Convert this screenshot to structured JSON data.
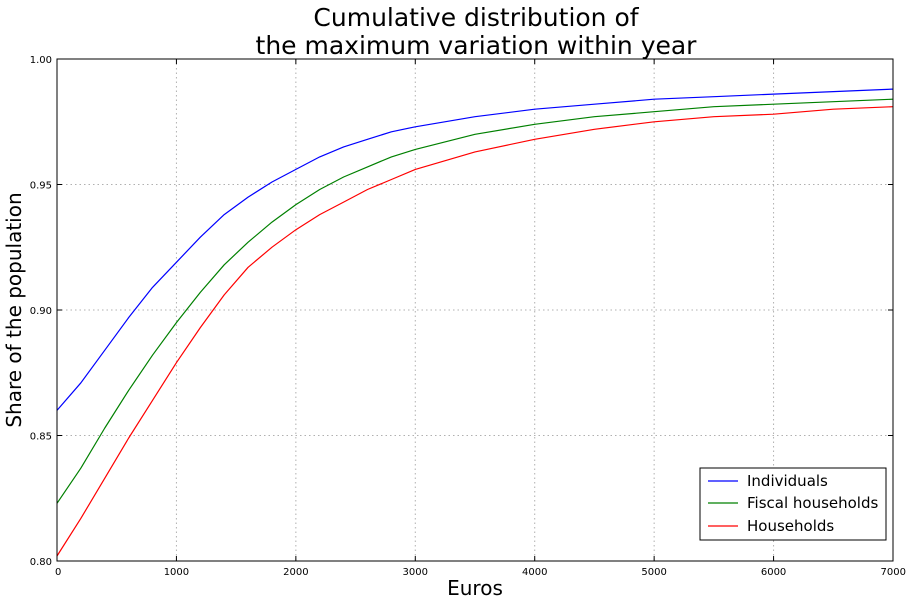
{
  "chart_data": {
    "type": "line",
    "title": [
      "Cumulative distribution of",
      "the maximum variation within year"
    ],
    "xlabel": "Euros",
    "ylabel": "Share of the population",
    "xlim": [
      0,
      7000
    ],
    "ylim": [
      0.8,
      1.0
    ],
    "x_ticks": [
      0,
      1000,
      2000,
      3000,
      4000,
      5000,
      6000,
      7000
    ],
    "x_tick_labels": [
      "0",
      "1000",
      "2000",
      "3000",
      "4000",
      "5000",
      "6000",
      "7000"
    ],
    "y_ticks": [
      0.8,
      0.85,
      0.9,
      0.95,
      1.0
    ],
    "y_tick_labels": [
      "0.80",
      "0.85",
      "0.90",
      "0.95",
      "1.00"
    ],
    "grid": true,
    "legend_position": "lower-right",
    "x": [
      0,
      200,
      400,
      600,
      800,
      1000,
      1200,
      1400,
      1600,
      1800,
      2000,
      2200,
      2400,
      2600,
      2800,
      3000,
      3500,
      4000,
      4500,
      5000,
      5500,
      6000,
      6500,
      7000
    ],
    "series": [
      {
        "name": "Individuals",
        "color": "#0000ff",
        "values": [
          0.86,
          0.871,
          0.884,
          0.897,
          0.909,
          0.919,
          0.929,
          0.938,
          0.945,
          0.951,
          0.956,
          0.961,
          0.965,
          0.968,
          0.971,
          0.973,
          0.977,
          0.98,
          0.982,
          0.984,
          0.985,
          0.986,
          0.987,
          0.988
        ]
      },
      {
        "name": "Fiscal households",
        "color": "#008000",
        "values": [
          0.823,
          0.837,
          0.853,
          0.868,
          0.882,
          0.895,
          0.907,
          0.918,
          0.927,
          0.935,
          0.942,
          0.948,
          0.953,
          0.957,
          0.961,
          0.964,
          0.97,
          0.974,
          0.977,
          0.979,
          0.981,
          0.982,
          0.983,
          0.984
        ]
      },
      {
        "name": "Households",
        "color": "#ff0000",
        "values": [
          0.802,
          0.817,
          0.833,
          0.849,
          0.864,
          0.879,
          0.893,
          0.906,
          0.917,
          0.925,
          0.932,
          0.938,
          0.943,
          0.948,
          0.952,
          0.956,
          0.963,
          0.968,
          0.972,
          0.975,
          0.977,
          0.978,
          0.98,
          0.981
        ]
      }
    ]
  }
}
